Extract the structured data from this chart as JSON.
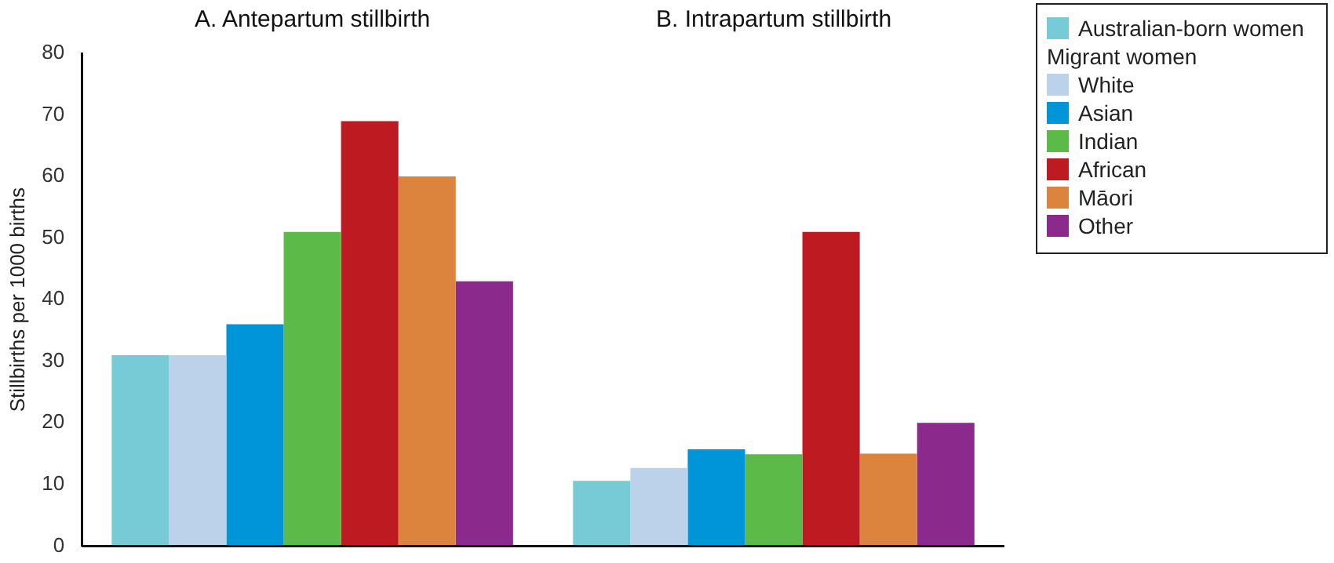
{
  "chart_data": {
    "type": "bar",
    "ylabel": "Stillbirths per 1000 births",
    "categories": [
      "A. Antepartum stillbirth",
      "B. Intrapartum stillbirth"
    ],
    "legend_title": "Migrant women",
    "series": [
      {
        "name": "Australian-born women",
        "color": "#76cbd7",
        "values": [
          31,
          10.6
        ]
      },
      {
        "name": "White",
        "color": "#bcd1ea",
        "values": [
          31,
          12.7
        ]
      },
      {
        "name": "Asian",
        "color": "#0095d9",
        "values": [
          36,
          15.7
        ]
      },
      {
        "name": "Indian",
        "color": "#5cbb48",
        "values": [
          51,
          14.9
        ]
      },
      {
        "name": "African",
        "color": "#bd1b21",
        "values": [
          69,
          51
        ]
      },
      {
        "name": "Māori",
        "color": "#dc843d",
        "values": [
          60,
          15
        ]
      },
      {
        "name": "Other",
        "color": "#8b2a8c",
        "values": [
          43,
          20
        ]
      }
    ],
    "ylim": [
      0,
      80
    ],
    "yticks": [
      0,
      10,
      20,
      30,
      40,
      50,
      60,
      70,
      80
    ],
    "legend": "top right"
  }
}
